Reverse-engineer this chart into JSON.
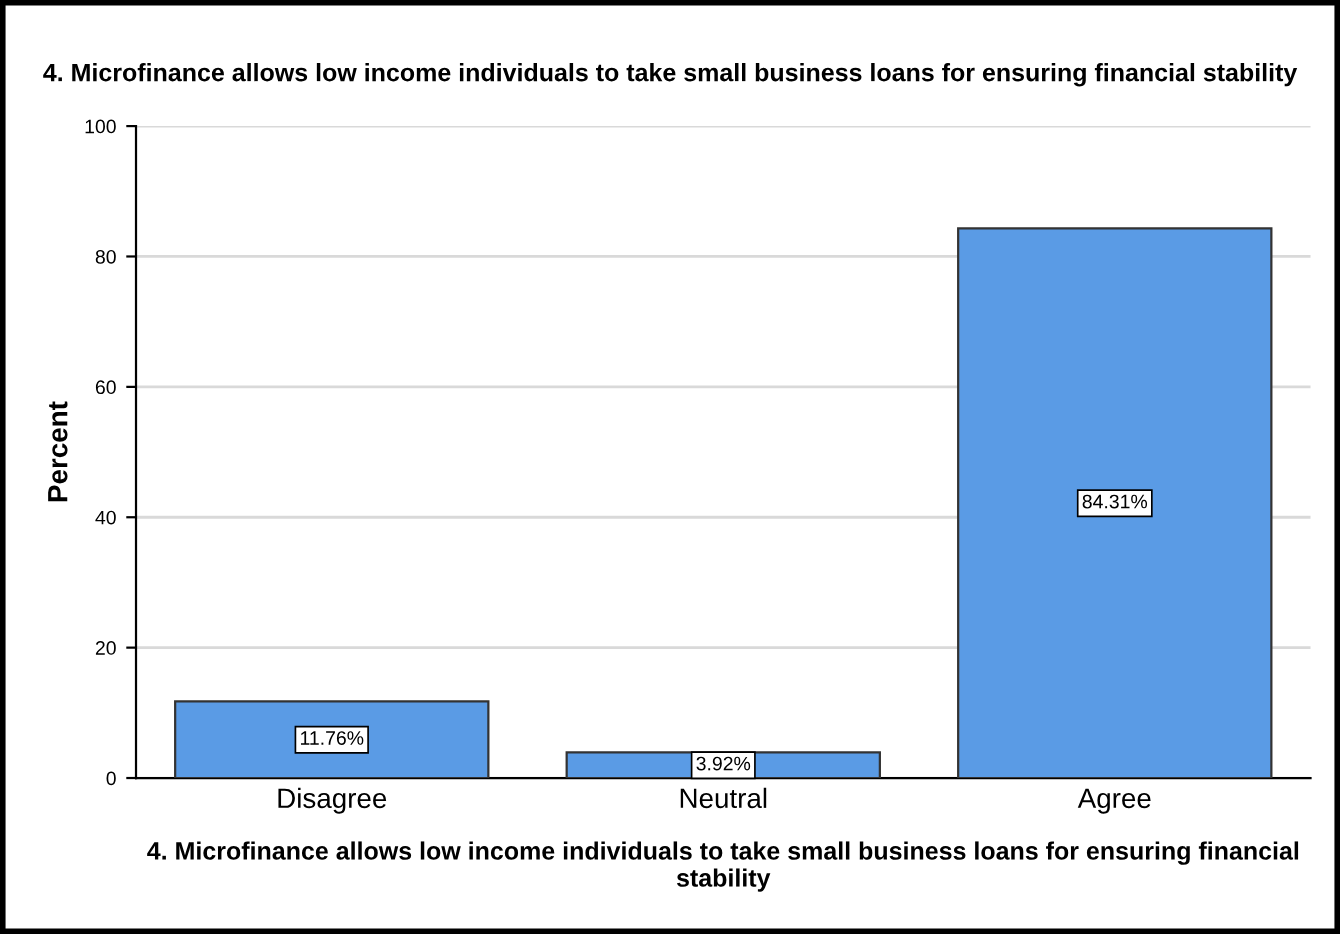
{
  "chart_data": {
    "type": "bar",
    "title": "4. Microfinance allows low income individuals to take small business loans for ensuring financial stability",
    "xlabel": "4. Microfinance allows low income individuals to take small business loans for ensuring financial stability",
    "ylabel": "Percent",
    "categories": [
      "Disagree",
      "Neutral",
      "Agree"
    ],
    "values": [
      11.76,
      3.92,
      84.31
    ],
    "value_labels": [
      "11.76%",
      "3.92%",
      "84.31%"
    ],
    "color": "#5a9be5",
    "ylim": [
      0,
      100
    ],
    "yticks": [
      0,
      20,
      40,
      60,
      80,
      100
    ],
    "grid": "y"
  }
}
